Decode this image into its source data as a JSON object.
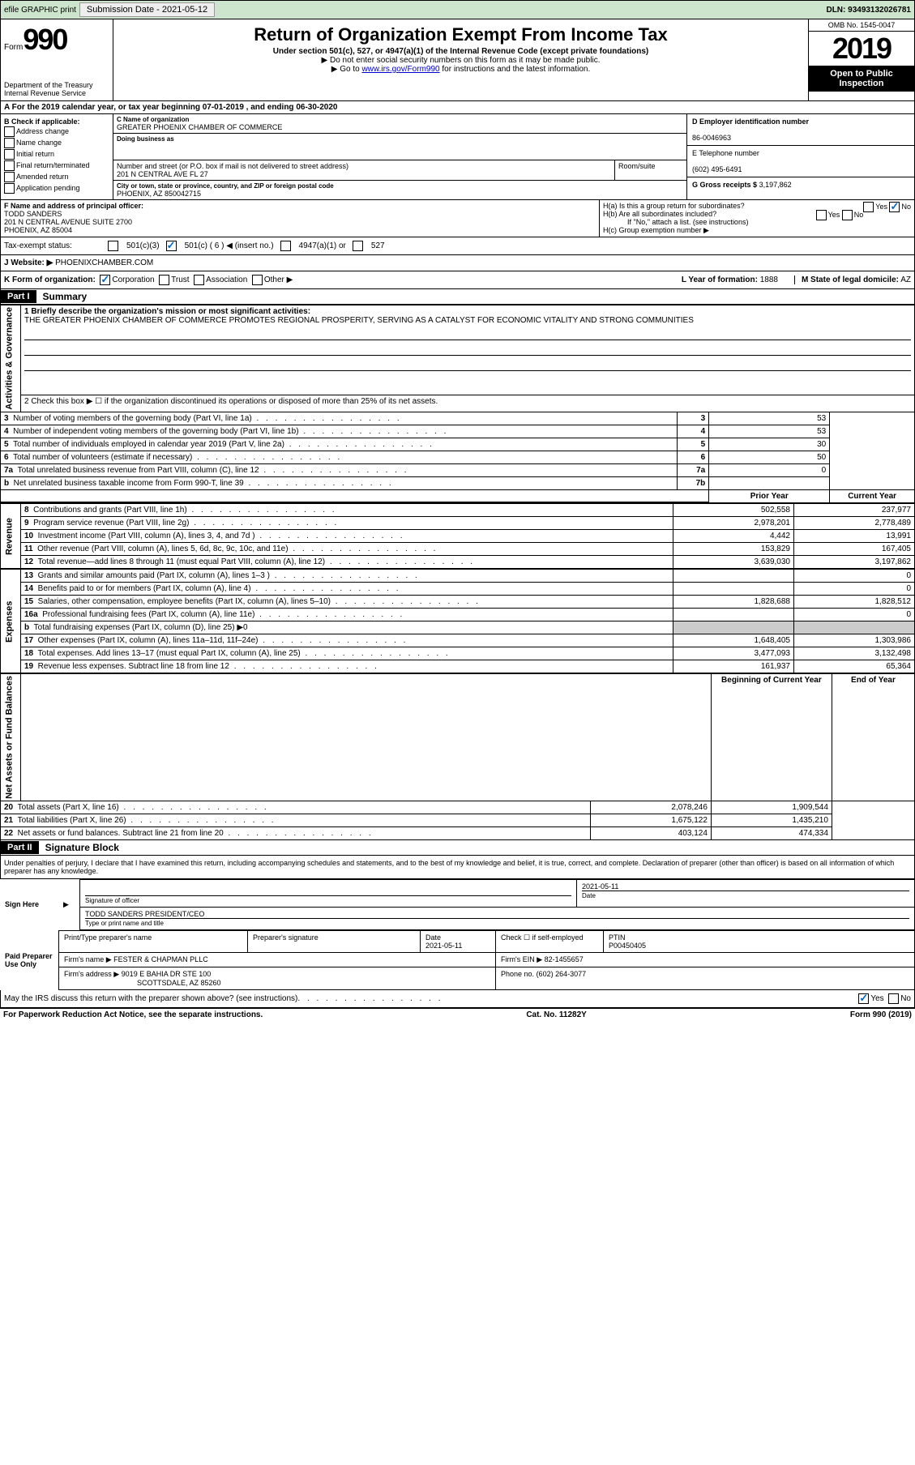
{
  "top": {
    "efile": "efile GRAPHIC print",
    "sub_label": "Submission Date - 2021-05-12",
    "dln": "DLN: 93493132026781"
  },
  "header": {
    "form_word": "Form",
    "form_no": "990",
    "dept1": "Department of the Treasury",
    "dept2": "Internal Revenue Service",
    "title": "Return of Organization Exempt From Income Tax",
    "sub1": "Under section 501(c), 527, or 4947(a)(1) of the Internal Revenue Code (except private foundations)",
    "sub2": "▶ Do not enter social security numbers on this form as it may be made public.",
    "sub3a": "▶ Go to ",
    "sub3link": "www.irs.gov/Form990",
    "sub3b": " for instructions and the latest information.",
    "omb": "OMB No. 1545-0047",
    "year": "2019",
    "open": "Open to Public Inspection"
  },
  "a": {
    "text": "A For the 2019 calendar year, or tax year beginning 07-01-2019   , and ending 06-30-2020"
  },
  "b": {
    "title": "B Check if applicable:",
    "opts": [
      "Address change",
      "Name change",
      "Initial return",
      "Final return/terminated",
      "Amended return",
      "Application pending"
    ]
  },
  "c": {
    "name_lbl": "C Name of organization",
    "name": "GREATER PHOENIX CHAMBER OF COMMERCE",
    "dba_lbl": "Doing business as",
    "addr_lbl": "Number and street (or P.O. box if mail is not delivered to street address)",
    "addr": "201 N CENTRAL AVE FL 27",
    "room_lbl": "Room/suite",
    "city_lbl": "City or town, state or province, country, and ZIP or foreign postal code",
    "city": "PHOENIX, AZ  850042715"
  },
  "d": {
    "lbl": "D Employer identification number",
    "val": "86-0046963"
  },
  "e": {
    "lbl": "E Telephone number",
    "val": "(602) 495-6491"
  },
  "g": {
    "lbl": "G Gross receipts $",
    "val": "3,197,862"
  },
  "f": {
    "lbl": "F Name and address of principal officer:",
    "name": "TODD SANDERS",
    "addr1": "201 N CENTRAL AVENUE SUITE 2700",
    "addr2": "PHOENIX, AZ  85004"
  },
  "h": {
    "a": "H(a)  Is this a group return for subordinates?",
    "b": "H(b)  Are all subordinates included?",
    "note": "If \"No,\" attach a list. (see instructions)",
    "c": "H(c)  Group exemption number ▶",
    "yes": "Yes",
    "no": "No"
  },
  "i": {
    "lbl": "Tax-exempt status:",
    "o1": "501(c)(3)",
    "o2": "501(c) ( 6 ) ◀ (insert no.)",
    "o3": "4947(a)(1) or",
    "o4": "527"
  },
  "j": {
    "lbl": "J   Website: ▶",
    "val": "PHOENIXCHAMBER.COM"
  },
  "k": {
    "lbl": "K Form of organization:",
    "o1": "Corporation",
    "o2": "Trust",
    "o3": "Association",
    "o4": "Other ▶"
  },
  "l": {
    "lbl": "L Year of formation:",
    "val": "1888"
  },
  "m": {
    "lbl": "M State of legal domicile:",
    "val": "AZ"
  },
  "part1": {
    "hdr": "Part I",
    "title": "Summary"
  },
  "summary": {
    "side1": "Activities & Governance",
    "side2": "Revenue",
    "side3": "Expenses",
    "side4": "Net Assets or Fund Balances",
    "l1": "1  Briefly describe the organization's mission or most significant activities:",
    "mission": "THE GREATER PHOENIX CHAMBER OF COMMERCE PROMOTES REGIONAL PROSPERITY, SERVING AS A CATALYST FOR ECONOMIC VITALITY AND STRONG COMMUNITIES",
    "l2": "2    Check this box ▶ ☐  if the organization discontinued its operations or disposed of more than 25% of its net assets.",
    "rows1": [
      {
        "n": "3",
        "t": "Number of voting members of the governing body (Part VI, line 1a)",
        "b": "3",
        "v": "53"
      },
      {
        "n": "4",
        "t": "Number of independent voting members of the governing body (Part VI, line 1b)",
        "b": "4",
        "v": "53"
      },
      {
        "n": "5",
        "t": "Total number of individuals employed in calendar year 2019 (Part V, line 2a)",
        "b": "5",
        "v": "30"
      },
      {
        "n": "6",
        "t": "Total number of volunteers (estimate if necessary)",
        "b": "6",
        "v": "50"
      },
      {
        "n": "7a",
        "t": "Total unrelated business revenue from Part VIII, column (C), line 12",
        "b": "7a",
        "v": "0"
      },
      {
        "n": "b",
        "t": "Net unrelated business taxable income from Form 990-T, line 39",
        "b": "7b",
        "v": ""
      }
    ],
    "hdr_prior": "Prior Year",
    "hdr_curr": "Current Year",
    "rows2": [
      {
        "n": "8",
        "t": "Contributions and grants (Part VIII, line 1h)",
        "p": "502,558",
        "c": "237,977"
      },
      {
        "n": "9",
        "t": "Program service revenue (Part VIII, line 2g)",
        "p": "2,978,201",
        "c": "2,778,489"
      },
      {
        "n": "10",
        "t": "Investment income (Part VIII, column (A), lines 3, 4, and 7d )",
        "p": "4,442",
        "c": "13,991"
      },
      {
        "n": "11",
        "t": "Other revenue (Part VIII, column (A), lines 5, 6d, 8c, 9c, 10c, and 11e)",
        "p": "153,829",
        "c": "167,405"
      },
      {
        "n": "12",
        "t": "Total revenue—add lines 8 through 11 (must equal Part VIII, column (A), line 12)",
        "p": "3,639,030",
        "c": "3,197,862"
      }
    ],
    "rows3": [
      {
        "n": "13",
        "t": "Grants and similar amounts paid (Part IX, column (A), lines 1–3 )",
        "p": "",
        "c": "0"
      },
      {
        "n": "14",
        "t": "Benefits paid to or for members (Part IX, column (A), line 4)",
        "p": "",
        "c": "0"
      },
      {
        "n": "15",
        "t": "Salaries, other compensation, employee benefits (Part IX, column (A), lines 5–10)",
        "p": "1,828,688",
        "c": "1,828,512"
      },
      {
        "n": "16a",
        "t": "Professional fundraising fees (Part IX, column (A), line 11e)",
        "p": "",
        "c": "0"
      },
      {
        "n": "b",
        "t": "Total fundraising expenses (Part IX, column (D), line 25) ▶0",
        "p": "SHADE",
        "c": "SHADE"
      },
      {
        "n": "17",
        "t": "Other expenses (Part IX, column (A), lines 11a–11d, 11f–24e)",
        "p": "1,648,405",
        "c": "1,303,986"
      },
      {
        "n": "18",
        "t": "Total expenses. Add lines 13–17 (must equal Part IX, column (A), line 25)",
        "p": "3,477,093",
        "c": "3,132,498"
      },
      {
        "n": "19",
        "t": "Revenue less expenses. Subtract line 18 from line 12",
        "p": "161,937",
        "c": "65,364"
      }
    ],
    "hdr_beg": "Beginning of Current Year",
    "hdr_end": "End of Year",
    "rows4": [
      {
        "n": "20",
        "t": "Total assets (Part X, line 16)",
        "p": "2,078,246",
        "c": "1,909,544"
      },
      {
        "n": "21",
        "t": "Total liabilities (Part X, line 26)",
        "p": "1,675,122",
        "c": "1,435,210"
      },
      {
        "n": "22",
        "t": "Net assets or fund balances. Subtract line 21 from line 20",
        "p": "403,124",
        "c": "474,334"
      }
    ]
  },
  "part2": {
    "hdr": "Part II",
    "title": "Signature Block"
  },
  "sig": {
    "decl": "Under penalties of perjury, I declare that I have examined this return, including accompanying schedules and statements, and to the best of my knowledge and belief, it is true, correct, and complete. Declaration of preparer (other than officer) is based on all information of which preparer has any knowledge.",
    "sign_here": "Sign Here",
    "sig_officer": "Signature of officer",
    "date_lbl": "Date",
    "date": "2021-05-11",
    "name": "TODD SANDERS PRESIDENT/CEO",
    "name_lbl": "Type or print name and title",
    "paid": "Paid Preparer Use Only",
    "pt_name_lbl": "Print/Type preparer's name",
    "pt_sig_lbl": "Preparer's signature",
    "pt_date": "2021-05-11",
    "self_emp": "Check ☐ if self-employed",
    "ptin_lbl": "PTIN",
    "ptin": "P00450405",
    "firm_name_lbl": "Firm's name    ▶",
    "firm_name": "FESTER & CHAPMAN PLLC",
    "firm_ein_lbl": "Firm's EIN ▶",
    "firm_ein": "82-1455657",
    "firm_addr_lbl": "Firm's address ▶",
    "firm_addr1": "9019 E BAHIA DR STE 100",
    "firm_addr2": "SCOTTSDALE, AZ  85260",
    "phone_lbl": "Phone no.",
    "phone": "(602) 264-3077",
    "discuss": "May the IRS discuss this return with the preparer shown above? (see instructions)"
  },
  "footer": {
    "l": "For Paperwork Reduction Act Notice, see the separate instructions.",
    "c": "Cat. No. 11282Y",
    "r": "Form 990 (2019)"
  }
}
